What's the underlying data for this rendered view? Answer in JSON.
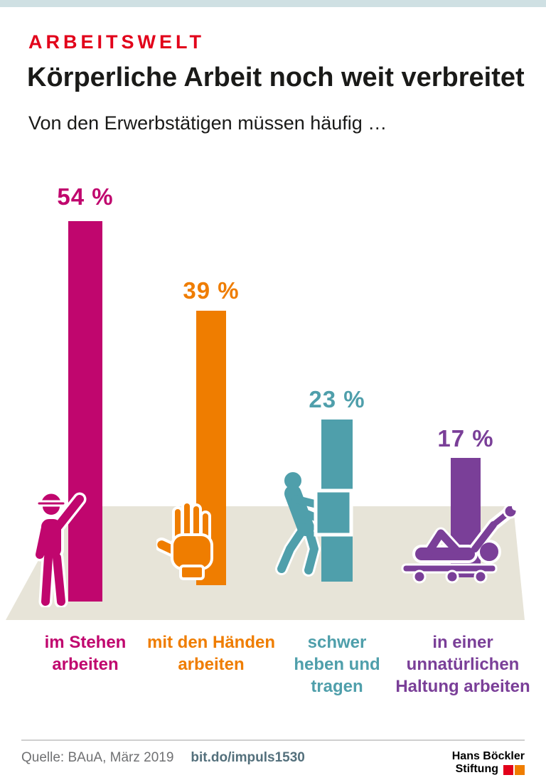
{
  "page": {
    "top_strip_color": "#cfe0e3",
    "background": "#ffffff"
  },
  "header": {
    "kicker": "ARBEITSWELT",
    "kicker_color": "#e2001a",
    "title": "Körperliche Arbeit noch weit verbreitet",
    "subtitle": "Von den Erwerbstätigen müssen häufig …"
  },
  "chart_data": {
    "type": "bar",
    "title": "Körperliche Arbeit noch weit verbreitet",
    "subtitle": "Von den Erwerbstätigen müssen häufig …",
    "unit": "%",
    "ylim": [
      0,
      60
    ],
    "grid": false,
    "legend": "none",
    "floor_color": "#e7e4d8",
    "categories": [
      "im Stehen arbeiten",
      "mit den Händen arbeiten",
      "schwer heben und tragen",
      "in einer unnatürlichen Haltung arbeiten"
    ],
    "values": [
      54,
      39,
      23,
      17
    ],
    "items": [
      {
        "value": 54,
        "percent_label": "54 %",
        "label": "im Stehen\narbeiten",
        "color": "#c0066e",
        "icon": "standing-worker-icon"
      },
      {
        "value": 39,
        "percent_label": "39 %",
        "label": "mit den Händen\narbeiten",
        "color": "#ef7d00",
        "icon": "open-hand-icon"
      },
      {
        "value": 23,
        "percent_label": "23 %",
        "label": "schwer\nheben und\ntragen",
        "color": "#4f9fab",
        "icon": "carrying-box-icon"
      },
      {
        "value": 17,
        "percent_label": "17 %",
        "label": "in einer\nunnatürlichen\nHaltung arbeiten",
        "color": "#7a3f98",
        "icon": "mechanic-lying-icon"
      }
    ]
  },
  "footer": {
    "source": "Quelle: BAuA, März 2019",
    "link": "bit.do/impuls1530",
    "logo": {
      "line1": "Hans Böckler",
      "line2": "Stiftung",
      "block_colors": [
        "#e2001a",
        "#ef7d00"
      ]
    }
  }
}
